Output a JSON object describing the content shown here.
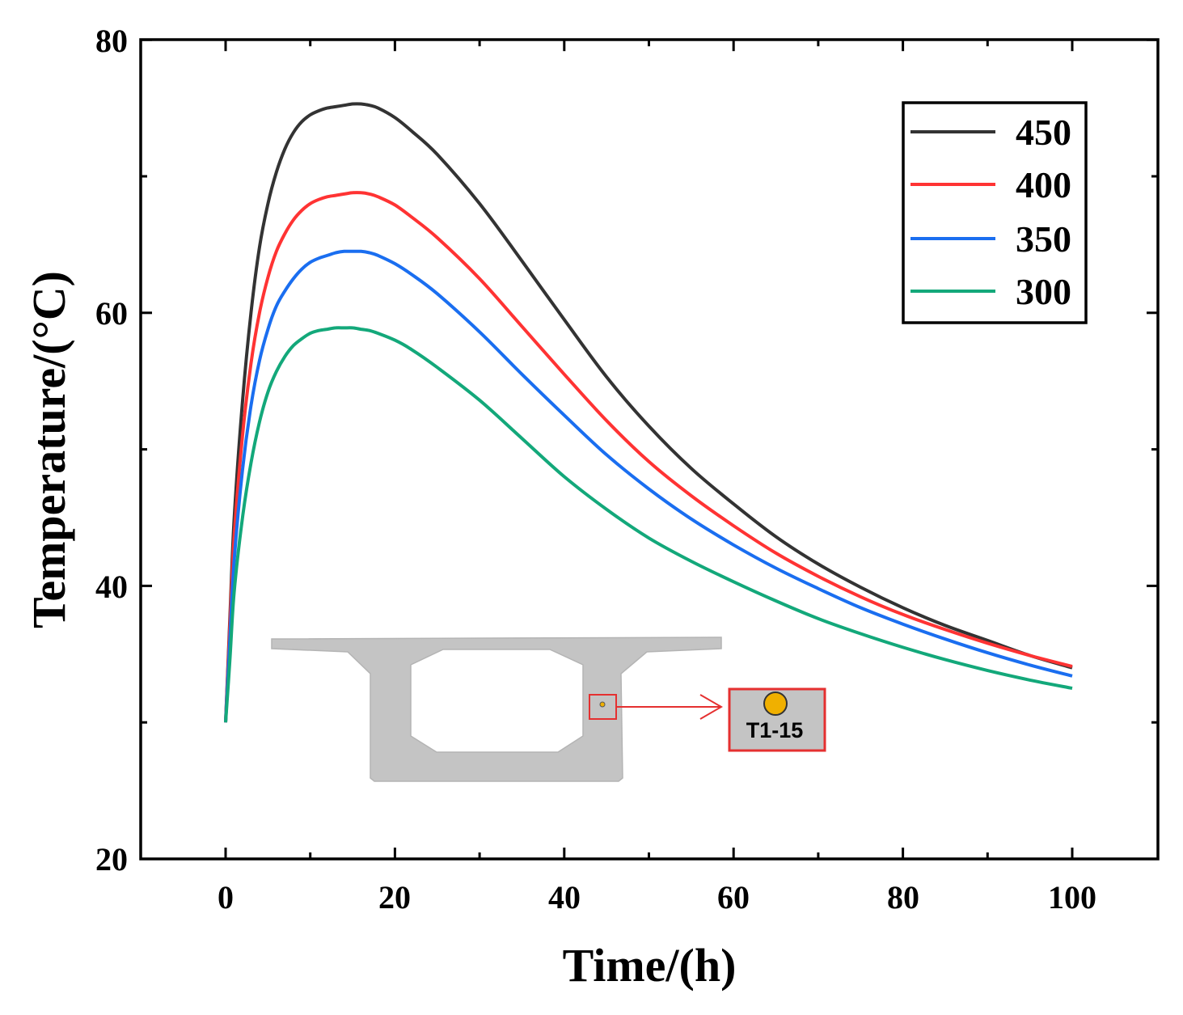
{
  "chart_data": {
    "type": "line",
    "title": "",
    "xlabel": "Time/(h)",
    "ylabel": "Temperature/(°C)",
    "xlim": [
      -10,
      110
    ],
    "ylim": [
      20,
      80
    ],
    "xticks": [
      0,
      20,
      40,
      60,
      80,
      100
    ],
    "yticks": [
      20,
      40,
      60,
      80
    ],
    "xtick_labels": [
      "0",
      "20",
      "40",
      "60",
      "80",
      "100"
    ],
    "ytick_labels": [
      "20",
      "40",
      "60",
      "80"
    ],
    "grid": false,
    "legend_position": "top-right",
    "x": [
      0,
      0.5,
      1,
      2,
      3,
      4,
      5,
      6,
      7,
      8,
      9,
      10,
      11,
      12,
      13,
      14,
      15,
      16,
      17,
      18,
      20,
      22,
      25,
      30,
      35,
      40,
      45,
      50,
      55,
      60,
      65,
      70,
      75,
      80,
      85,
      90,
      95,
      100
    ],
    "series": [
      {
        "name": "450",
        "color": "#333333",
        "values": [
          30.0,
          37.5,
          44.8,
          53.5,
          60.0,
          64.8,
          68.0,
          70.3,
          72.0,
          73.2,
          74.0,
          74.5,
          74.8,
          75.0,
          75.1,
          75.2,
          75.3,
          75.3,
          75.2,
          75.0,
          74.3,
          73.3,
          71.6,
          68.0,
          63.8,
          59.5,
          55.3,
          51.7,
          48.6,
          46.0,
          43.6,
          41.6,
          39.9,
          38.4,
          37.1,
          36.0,
          34.9,
          34.0
        ]
      },
      {
        "name": "400",
        "color": "#ff3333",
        "values": [
          30.0,
          37.0,
          43.5,
          51.0,
          56.3,
          60.0,
          62.6,
          64.5,
          65.8,
          66.8,
          67.5,
          68.0,
          68.3,
          68.5,
          68.6,
          68.7,
          68.8,
          68.8,
          68.7,
          68.5,
          67.9,
          67.0,
          65.5,
          62.5,
          59.0,
          55.5,
          52.1,
          49.1,
          46.6,
          44.4,
          42.4,
          40.7,
          39.2,
          37.9,
          36.8,
          35.8,
          34.9,
          34.1
        ]
      },
      {
        "name": "350",
        "color": "#1a6ef0",
        "values": [
          30.0,
          36.0,
          41.8,
          48.5,
          53.2,
          56.5,
          58.8,
          60.5,
          61.6,
          62.5,
          63.2,
          63.7,
          64.0,
          64.2,
          64.4,
          64.5,
          64.5,
          64.5,
          64.4,
          64.2,
          63.6,
          62.8,
          61.4,
          58.6,
          55.5,
          52.5,
          49.6,
          47.1,
          44.9,
          43.0,
          41.3,
          39.8,
          38.4,
          37.2,
          36.1,
          35.1,
          34.2,
          33.4
        ]
      },
      {
        "name": "300",
        "color": "#13a87a",
        "values": [
          30.0,
          34.5,
          39.5,
          45.0,
          49.0,
          52.0,
          54.2,
          55.7,
          56.8,
          57.6,
          58.1,
          58.5,
          58.7,
          58.8,
          58.9,
          58.9,
          58.9,
          58.8,
          58.7,
          58.5,
          58.0,
          57.3,
          56.0,
          53.6,
          50.8,
          48.0,
          45.6,
          43.5,
          41.8,
          40.3,
          38.9,
          37.6,
          36.5,
          35.5,
          34.6,
          33.8,
          33.1,
          32.5
        ]
      }
    ],
    "annotations": [
      {
        "text": "T1-15"
      }
    ]
  }
}
